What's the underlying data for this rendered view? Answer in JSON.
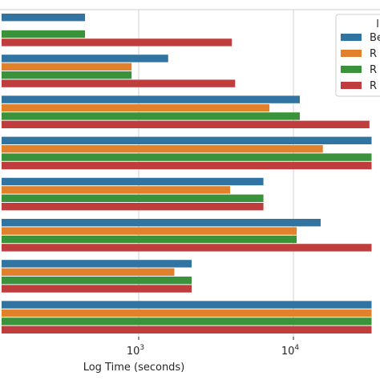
{
  "chart_data": {
    "type": "bar",
    "orientation": "horizontal",
    "scale_x": "log",
    "xlabel": "Log Time (seconds)",
    "ylabel": "",
    "title": "",
    "xlim": [
      130,
      32000
    ],
    "x_ticks": [
      {
        "value": 1000,
        "base": "10",
        "exp": "3"
      },
      {
        "value": 10000,
        "base": "10",
        "exp": "4"
      }
    ],
    "grid": true,
    "legend_title": "l",
    "legend_position": "top-right",
    "series": [
      {
        "name": "Be",
        "color": "#3274a1",
        "values": [
          450,
          1550,
          11000,
          32000,
          6400,
          15000,
          2200,
          32000
        ]
      },
      {
        "name": "R",
        "color": "#e1812c",
        "values": [
          null,
          900,
          7000,
          15500,
          3900,
          10500,
          1700,
          32000
        ]
      },
      {
        "name": "R",
        "color": "#3a923a",
        "values": [
          450,
          900,
          11000,
          32000,
          6400,
          10500,
          2200,
          32000
        ]
      },
      {
        "name": "R",
        "color": "#c03d3e",
        "values": [
          4000,
          4200,
          31000,
          32000,
          6400,
          32000,
          2200,
          32000
        ]
      }
    ]
  }
}
